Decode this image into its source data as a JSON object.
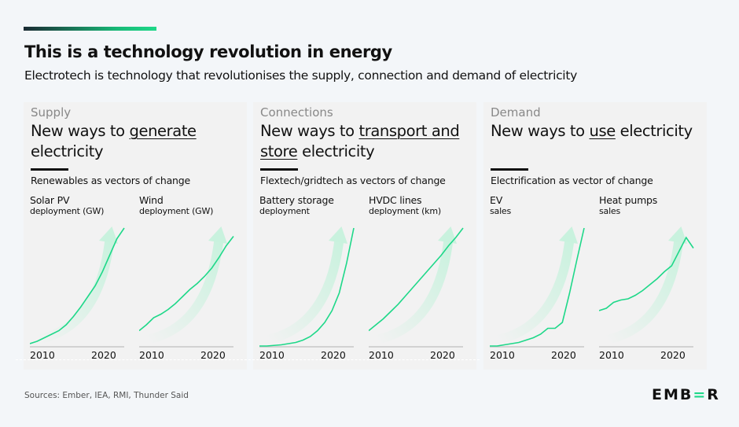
{
  "header": {
    "title": "This is a technology revolution in energy",
    "subtitle": "Electrotech is technology that revolutionises the supply, connection and demand of electricity"
  },
  "panels": [
    {
      "category": "Supply",
      "head_pre": "New ways to ",
      "head_u": "generate",
      "head_post": " electricity",
      "vector": "Renewables as vectors of change",
      "charts": [
        {
          "title": "Solar PV",
          "sub": "deployment (GW)"
        },
        {
          "title": "Wind",
          "sub": "deployment (GW)"
        }
      ]
    },
    {
      "category": "Connections",
      "head_pre": "New ways to ",
      "head_u": "transport and store",
      "head_post": " electricity",
      "vector": "Flextech/gridtech as vectors of change",
      "charts": [
        {
          "title": "Battery storage",
          "sub": "deployment"
        },
        {
          "title": "HVDC lines",
          "sub": "deployment (km)"
        }
      ]
    },
    {
      "category": "Demand",
      "head_pre": "New ways to ",
      "head_u": "use",
      "head_post": " electricity",
      "vector": "Electrification as vector of change",
      "charts": [
        {
          "title": "EV",
          "sub": "sales"
        },
        {
          "title": "Heat pumps",
          "sub": "sales"
        }
      ]
    }
  ],
  "x_ticks": [
    "2010",
    "2020"
  ],
  "chart_data": [
    {
      "type": "line",
      "title": "Solar PV deployment (GW)",
      "x": [
        2010,
        2011,
        2012,
        2013,
        2014,
        2015,
        2016,
        2017,
        2018,
        2019,
        2020,
        2021,
        2022,
        2023
      ],
      "values": [
        2,
        4,
        7,
        10,
        13,
        18,
        25,
        33,
        42,
        51,
        63,
        77,
        91,
        100
      ]
    },
    {
      "type": "line",
      "title": "Wind deployment (GW)",
      "x": [
        2010,
        2011,
        2012,
        2013,
        2014,
        2015,
        2016,
        2017,
        2018,
        2019,
        2020,
        2021,
        2022,
        2023
      ],
      "values": [
        13,
        18,
        24,
        27,
        31,
        36,
        42,
        48,
        53,
        59,
        66,
        75,
        85,
        93
      ]
    },
    {
      "type": "line",
      "title": "Battery storage deployment",
      "x": [
        2010,
        2011,
        2012,
        2013,
        2014,
        2015,
        2016,
        2017,
        2018,
        2019,
        2020,
        2021,
        2022,
        2023
      ],
      "values": [
        0,
        0,
        0.5,
        1,
        2,
        3,
        5,
        8,
        13,
        20,
        30,
        45,
        70,
        100
      ]
    },
    {
      "type": "line",
      "title": "HVDC lines deployment (km)",
      "x": [
        2010,
        2011,
        2012,
        2013,
        2014,
        2015,
        2016,
        2017,
        2018,
        2019,
        2020,
        2021,
        2022,
        2023
      ],
      "values": [
        13,
        18,
        23,
        29,
        35,
        42,
        49,
        56,
        63,
        70,
        77,
        85,
        92,
        100
      ]
    },
    {
      "type": "line",
      "title": "EV sales",
      "x": [
        2010,
        2011,
        2012,
        2013,
        2014,
        2015,
        2016,
        2017,
        2018,
        2019,
        2020,
        2021,
        2022,
        2023
      ],
      "values": [
        0,
        0,
        1,
        2,
        3,
        5,
        7,
        10,
        15,
        15,
        20,
        45,
        73,
        100
      ]
    },
    {
      "type": "line",
      "title": "Heat pumps sales",
      "x": [
        2010,
        2011,
        2012,
        2013,
        2014,
        2015,
        2016,
        2017,
        2018,
        2019,
        2020,
        2021,
        2022,
        2023
      ],
      "values": [
        30,
        32,
        37,
        39,
        40,
        43,
        47,
        52,
        57,
        63,
        68,
        80,
        92,
        83
      ]
    }
  ],
  "colors": {
    "line": "#1ed889",
    "arrow": "#c9f2de",
    "baseline": "#c8c8c8"
  },
  "footer": {
    "sources": "Sources: Ember, IEA, RMI, Thunder Said",
    "logo": "EMBER"
  }
}
